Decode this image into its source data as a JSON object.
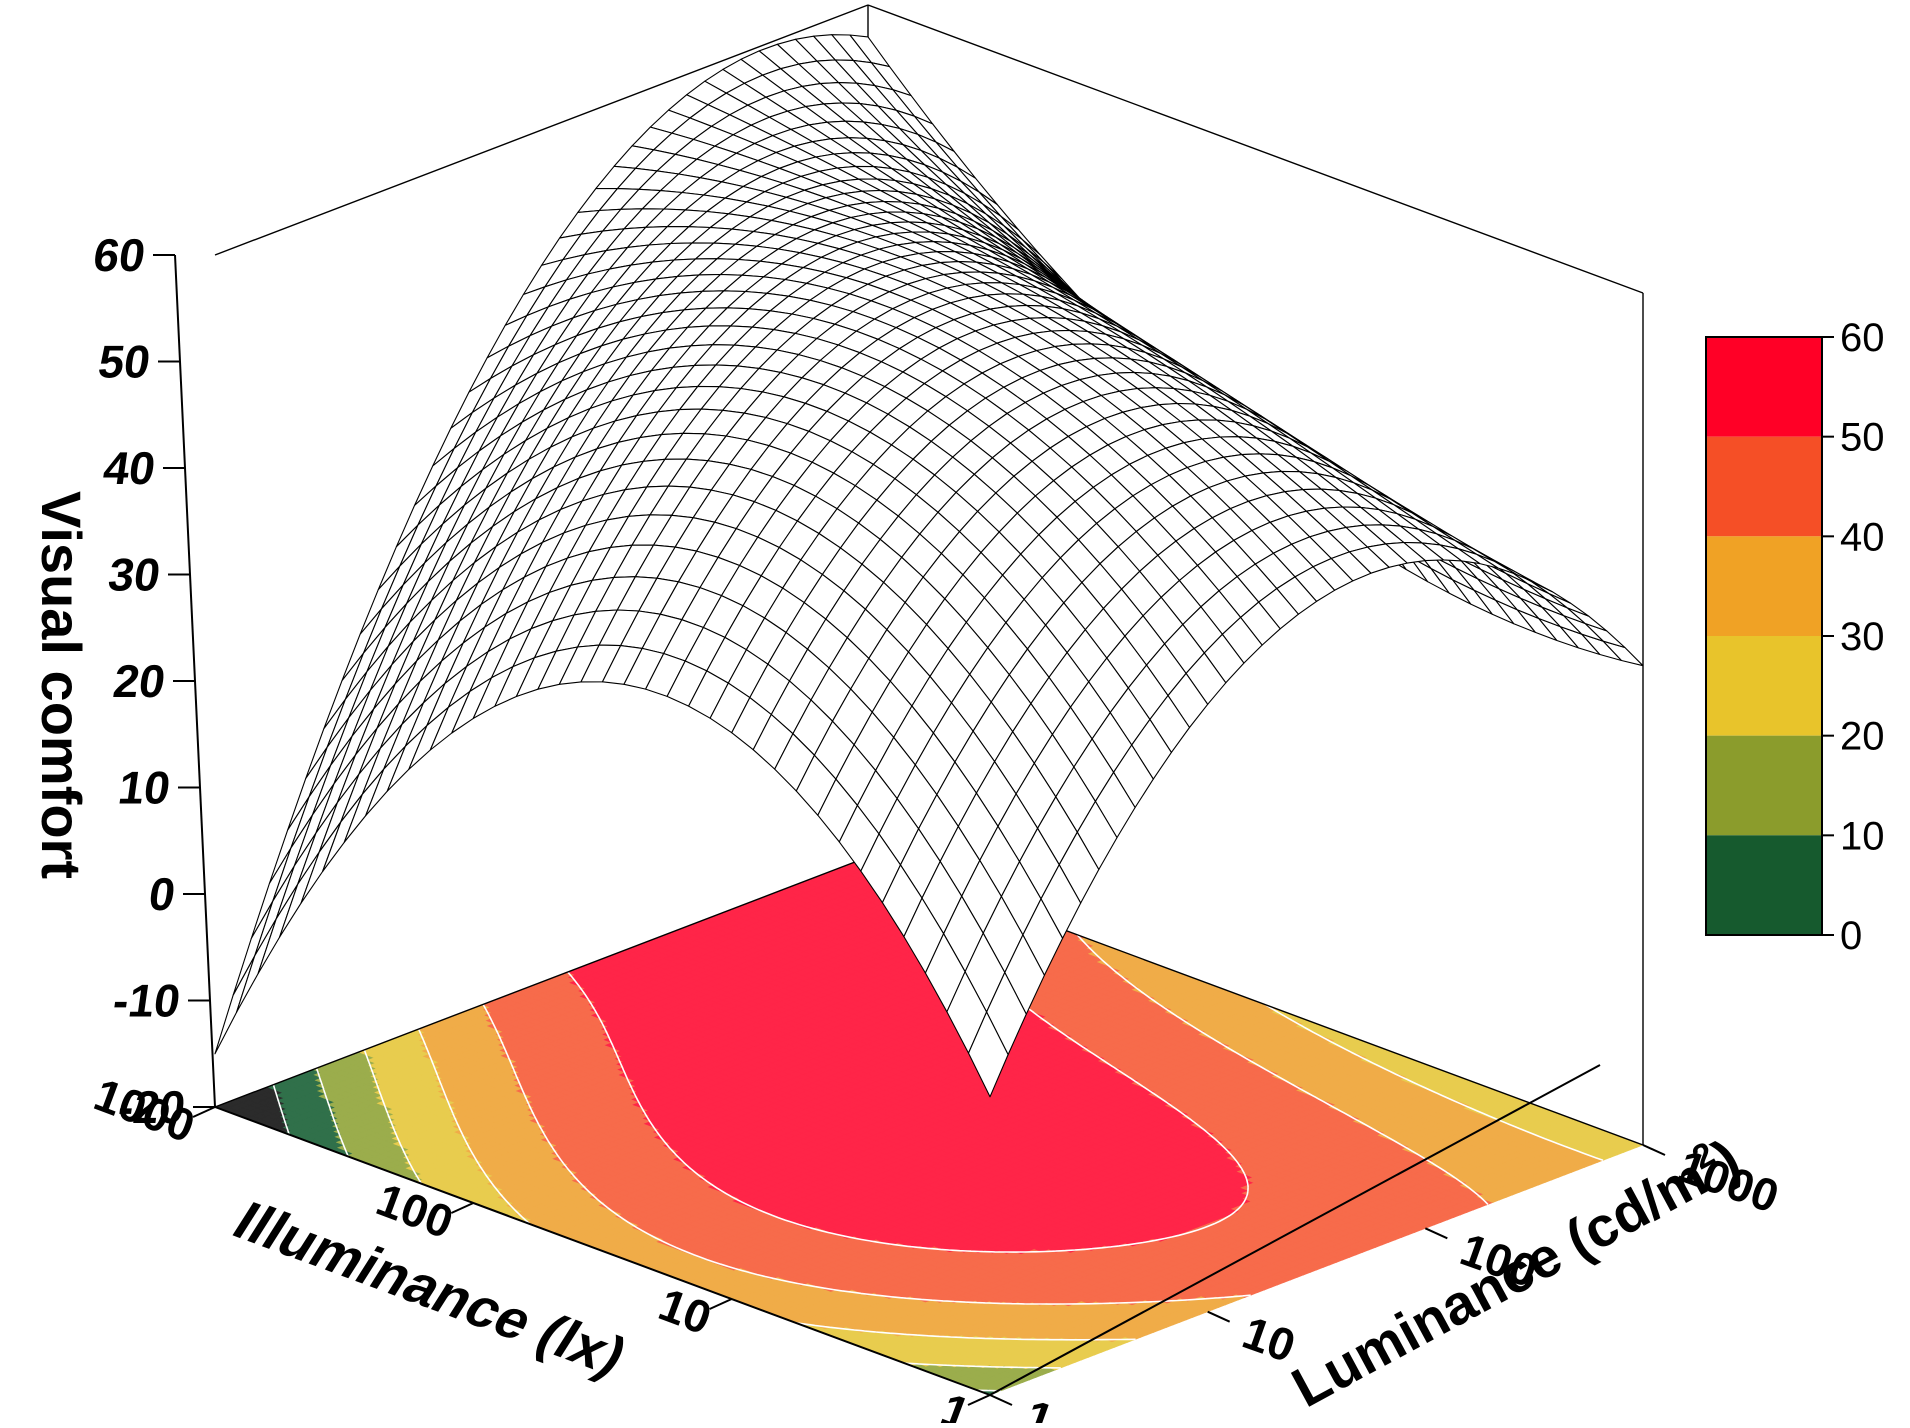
{
  "chart_data": {
    "type": "surface3d",
    "title": "",
    "z_axis": {
      "label": "Visual  comfort",
      "range": [
        -20,
        60
      ],
      "ticks": [
        60,
        50,
        40,
        30,
        20,
        10,
        0,
        -10,
        -20
      ],
      "tick_labels": [
        "60",
        "50",
        "40",
        "30",
        "20",
        "10",
        "0",
        "-10",
        "-20"
      ]
    },
    "x_axis": {
      "label": "Illuminance (lx)",
      "scale": "log",
      "range": [
        1,
        1000
      ],
      "ticks": [
        1000,
        100,
        10,
        1
      ],
      "tick_labels": [
        "1000",
        "100",
        "10",
        "1"
      ]
    },
    "y_axis": {
      "label_main": "Luminance (cd/m",
      "label_sup": "2",
      "label_close": ")",
      "scale": "log",
      "range": [
        1,
        1000
      ],
      "ticks": [
        1000,
        100,
        10,
        1
      ],
      "tick_labels": [
        "1000",
        "100",
        "10",
        "1"
      ]
    },
    "surface_summary": {
      "peak_value": 57,
      "peak_near": {
        "illuminance_lx": 300,
        "luminance_cd_m2": 100
      },
      "corner_values": {
        "illum_1000_lum_1": -15,
        "illum_1000_lum_1000": 57,
        "illum_1_lum_1000": 25,
        "illum_1_lum_1": 8
      }
    },
    "contour_levels": [
      0,
      10,
      20,
      30,
      40,
      50,
      60
    ],
    "colorbar": {
      "labels": [
        "60",
        "50",
        "40",
        "30",
        "20",
        "10",
        "0"
      ],
      "bands": [
        {
          "from": 50,
          "to": 60,
          "color": "#ff0026"
        },
        {
          "from": 40,
          "to": 50,
          "color": "#f54f26"
        },
        {
          "from": 30,
          "to": 40,
          "color": "#f0a225"
        },
        {
          "from": 20,
          "to": 30,
          "color": "#e8c42b"
        },
        {
          "from": 10,
          "to": 20,
          "color": "#8b9c2c"
        },
        {
          "from": 0,
          "to": 10,
          "color": "#165a2e"
        }
      ]
    },
    "contour_colors": {
      "lt0": "#2b2b2b",
      "b0_10": "#30704a",
      "b10_20": "#9bad4c",
      "b20_30": "#e8cc4e",
      "b30_40": "#f0ac48",
      "b40_50": "#f76b4b",
      "b50_60": "#ff2548"
    },
    "grid": false,
    "legend": "right"
  }
}
